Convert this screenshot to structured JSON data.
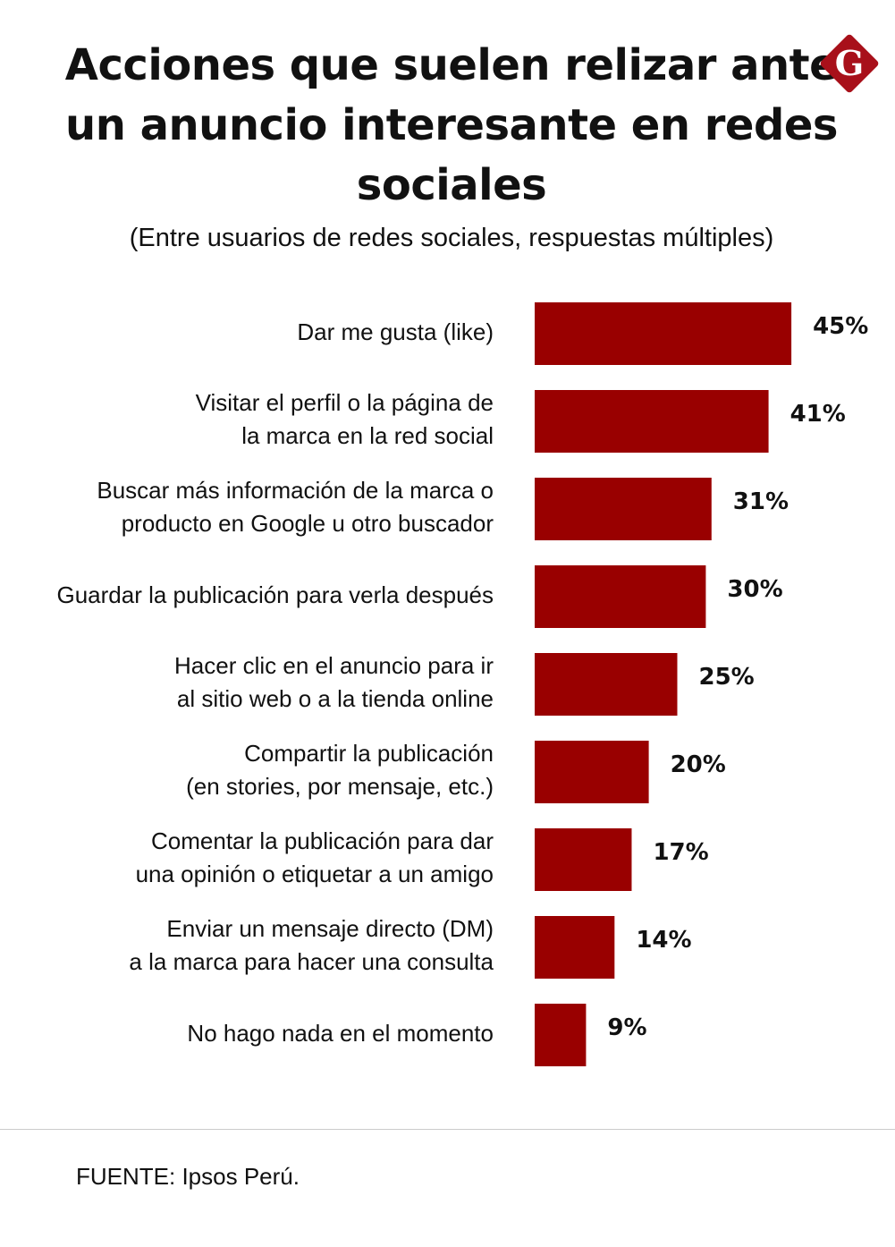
{
  "chart_data": {
    "type": "bar",
    "orientation": "horizontal",
    "title": "Acciones que suelen relizar ante un anuncio interesante en redes sociales",
    "subtitle": "(Entre usuarios de redes sociales, respuestas múltiples)",
    "categories": [
      [
        "Dar me gusta (like)"
      ],
      [
        "Visitar el perfil o la página de",
        "la marca en la red social"
      ],
      [
        "Buscar más información de la marca o",
        "producto en Google u otro buscador"
      ],
      [
        "Guardar la publicación para verla después"
      ],
      [
        "Hacer clic en el anuncio para ir",
        "al sitio web o a la tienda online"
      ],
      [
        "Compartir la publicación",
        "(en stories, por mensaje, etc.)"
      ],
      [
        "Comentar la publicación para dar",
        "una opinión o etiquetar a un amigo"
      ],
      [
        "Enviar un mensaje directo (DM)",
        "a la marca para hacer una consulta"
      ],
      [
        "No hago nada en el momento"
      ]
    ],
    "values": [
      45,
      41,
      31,
      30,
      25,
      20,
      17,
      14,
      9
    ],
    "value_labels": [
      "45%",
      "41%",
      "31%",
      "30%",
      "25%",
      "20%",
      "17%",
      "14%",
      "9%"
    ],
    "unit": "%",
    "bar_color": "#990000",
    "grid": false,
    "legend": "none"
  },
  "logo": {
    "letter": "G",
    "color": "#a8101a"
  },
  "source": "FUENTE: Ipsos Perú."
}
